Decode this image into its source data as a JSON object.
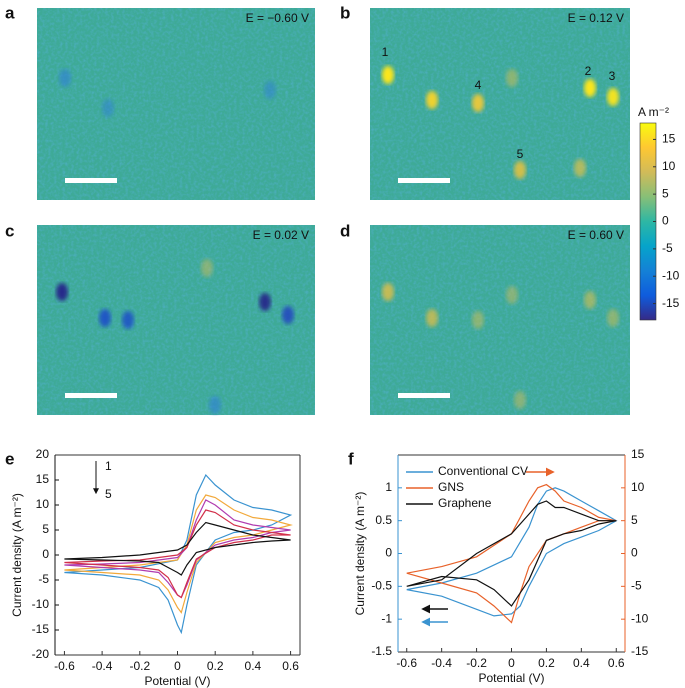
{
  "images": [
    {
      "label": "a",
      "potential": "E = −0.60 V"
    },
    {
      "label": "b",
      "potential": "E = 0.12 V",
      "spot_labels": [
        "1",
        "2",
        "3",
        "4",
        "5"
      ]
    },
    {
      "label": "c",
      "potential": "E = 0.02 V"
    },
    {
      "label": "d",
      "potential": "E = 0.60 V"
    }
  ],
  "chart_data": [
    {
      "type": "colorbar",
      "label": "A m⁻²",
      "ylim": [
        -18,
        18
      ],
      "yticks": [
        15,
        10,
        5,
        0,
        -5,
        -10,
        -15
      ],
      "colors": [
        "#352a87",
        "#0f5cdd",
        "#1481d6",
        "#06a4ca",
        "#2eb7a4",
        "#87bf77",
        "#d1bb59",
        "#fec832",
        "#f9fb0e"
      ]
    },
    {
      "type": "line",
      "label": "e",
      "xlabel": "Potential (V)",
      "ylabel": "Current density (A m⁻²)",
      "annotations": [
        "1",
        "5"
      ],
      "xlim": [
        -0.65,
        0.65
      ],
      "xticks": [
        -0.6,
        -0.4,
        -0.2,
        0,
        0.2,
        0.4,
        0.6
      ],
      "ylim": [
        -20,
        20
      ],
      "yticks": [
        -20,
        -15,
        -10,
        -5,
        0,
        5,
        10,
        15,
        20
      ],
      "x": [
        -0.6,
        -0.4,
        -0.2,
        0,
        0.05,
        0.1,
        0.15,
        0.2,
        0.3,
        0.4,
        0.5,
        0.6,
        0.5,
        0.4,
        0.3,
        0.2,
        0.1,
        0.05,
        0.02,
        0,
        -0.05,
        -0.1,
        -0.2,
        -0.4,
        -0.6
      ],
      "series": [
        {
          "color": "#3a93d0",
          "values": [
            -3.5,
            -3,
            -2.5,
            -1,
            3,
            12,
            16,
            14,
            11,
            9.5,
            9,
            8,
            6,
            5,
            4.5,
            3,
            -2,
            -10,
            -15.5,
            -14,
            -9,
            -6.5,
            -5,
            -4,
            -3.5
          ]
        },
        {
          "color": "#f2a93b",
          "values": [
            -3,
            -2.5,
            -2,
            -1,
            2,
            9,
            12,
            11.5,
            9,
            7.5,
            7,
            6,
            5,
            4,
            3.5,
            2.5,
            -1.5,
            -7.5,
            -11.5,
            -10.5,
            -7,
            -5,
            -4,
            -3.5,
            -3
          ]
        },
        {
          "color": "#b03cb0",
          "values": [
            -2,
            -1.8,
            -1.5,
            -0.5,
            1.5,
            7,
            11,
            10,
            7,
            6,
            5.5,
            5,
            4.5,
            3.5,
            3,
            2,
            -1,
            -6,
            -8.5,
            -8,
            -5.5,
            -3.5,
            -3,
            -2.5,
            -2
          ]
        },
        {
          "color": "#d2304a",
          "values": [
            -1.5,
            -1.2,
            -1,
            0,
            1.5,
            6,
            9,
            8.5,
            6,
            5,
            4.5,
            4,
            4,
            3,
            2.5,
            1.5,
            -0.8,
            -5.5,
            -8.5,
            -8,
            -4.5,
            -3,
            -2.5,
            -2,
            -1.5
          ]
        },
        {
          "color": "#111111",
          "values": [
            -0.8,
            -0.5,
            0,
            1,
            2,
            4.5,
            6.5,
            6,
            5,
            4,
            3.5,
            3,
            2.8,
            2.5,
            2,
            1.5,
            0.5,
            -2,
            -4,
            -3.5,
            -2.5,
            -1.5,
            -1.2,
            -1,
            -0.8
          ]
        }
      ]
    },
    {
      "type": "line",
      "label": "f",
      "xlabel": "Potential (V)",
      "ylabel": "Current density (A m⁻²)",
      "xlim": [
        -0.65,
        0.65
      ],
      "xticks": [
        -0.6,
        -0.4,
        -0.2,
        0,
        0.2,
        0.4,
        0.6
      ],
      "ylim": [
        -1.5,
        1.5
      ],
      "yticks": [
        -1.5,
        -1,
        -0.5,
        0,
        0.5,
        1
      ],
      "y2lim": [
        -15,
        15
      ],
      "y2ticks": [
        -15,
        -10,
        -5,
        0,
        5,
        10,
        15
      ],
      "y2color": "#e8622a",
      "ycolor": "#3a93d0",
      "x": [
        -0.6,
        -0.4,
        -0.2,
        0,
        0.1,
        0.15,
        0.2,
        0.25,
        0.3,
        0.4,
        0.5,
        0.6,
        0.5,
        0.4,
        0.3,
        0.2,
        0.1,
        0.05,
        0,
        -0.1,
        -0.2,
        -0.4,
        -0.6
      ],
      "series": [
        {
          "name": "Conventional CV",
          "color": "#3a93d0",
          "values": [
            -0.55,
            -0.45,
            -0.3,
            -0.05,
            0.4,
            0.75,
            0.95,
            1.0,
            0.95,
            0.8,
            0.65,
            0.5,
            0.35,
            0.25,
            0.15,
            0,
            -0.5,
            -0.8,
            -0.92,
            -0.95,
            -0.85,
            -0.65,
            -0.55
          ]
        },
        {
          "name": "GNS",
          "color": "#e8622a",
          "axis": "y2",
          "values": [
            -3,
            -2,
            -0.5,
            3,
            8,
            10,
            10.5,
            9.5,
            8,
            7,
            5.5,
            5,
            5,
            4,
            3,
            2,
            -2,
            -6,
            -10.5,
            -8,
            -6,
            -4.5,
            -3
          ]
        },
        {
          "name": "Graphene",
          "color": "#111111",
          "values": [
            -0.5,
            -0.4,
            0,
            0.3,
            0.6,
            0.75,
            0.8,
            0.7,
            0.7,
            0.6,
            0.5,
            0.5,
            0.45,
            0.35,
            0.3,
            0.2,
            -0.4,
            -0.6,
            -0.8,
            -0.55,
            -0.4,
            -0.35,
            -0.5
          ]
        }
      ]
    }
  ]
}
